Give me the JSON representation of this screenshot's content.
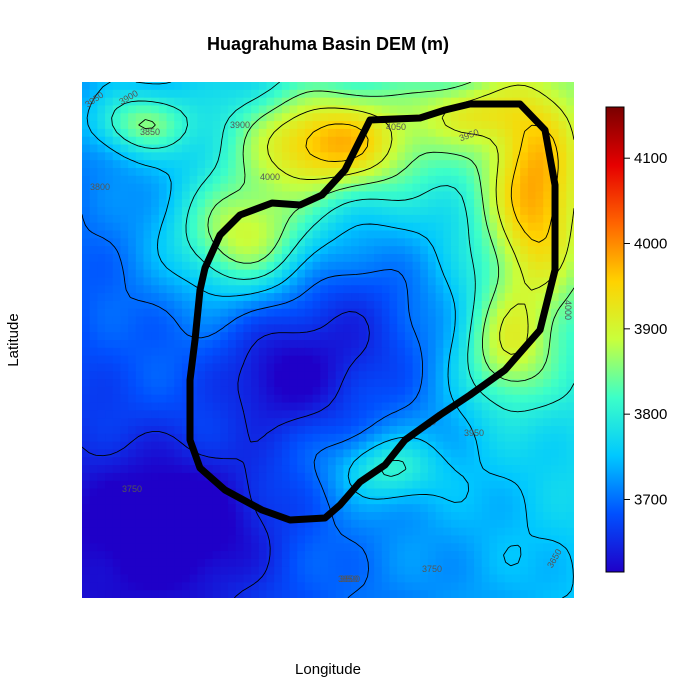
{
  "chart_data": {
    "type": "heatmap",
    "title": "Huagrahuma Basin DEM (m)",
    "xlabel": "Longitude",
    "ylabel": "Latitude",
    "colorbar": {
      "ticks": [
        3700,
        3800,
        3900,
        4000,
        4100
      ],
      "tick_labels": [
        "3700",
        "3800",
        "3900",
        "4000",
        "4100"
      ],
      "range": [
        3615,
        4160
      ],
      "palette": [
        "#1f00c8",
        "#0050ff",
        "#00c8ff",
        "#3cffc8",
        "#c8ff3c",
        "#ffd200",
        "#ff6400",
        "#e60000",
        "#7a0000"
      ]
    },
    "elevation_range": [
      3615,
      4160
    ],
    "contour_interval": 50,
    "contour_labels": [
      "3950",
      "3900",
      "3850",
      "3900",
      "3800",
      "4000",
      "4050",
      "3950",
      "4000",
      "3750",
      "4000",
      "3950",
      "3850",
      "3750",
      "3800",
      "3650"
    ],
    "basin_boundary": "black outline",
    "grid": false
  }
}
